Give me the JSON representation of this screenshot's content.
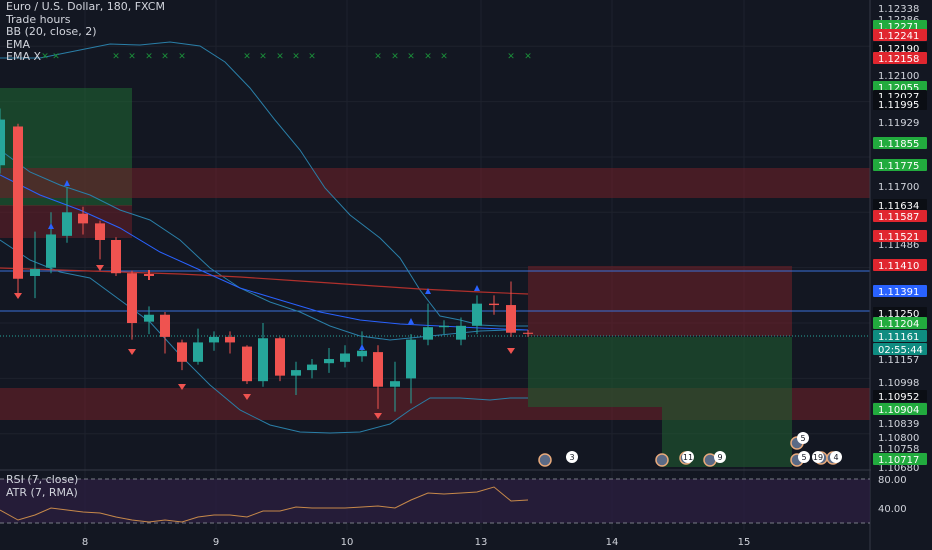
{
  "legend": {
    "symbol": "Euro / U.S. Dollar, 180, FXCM",
    "lines": [
      "Trade hours",
      "BB (20, close, 2)",
      "EMA",
      "EMA X"
    ]
  },
  "sub_legend": {
    "rsi": "RSI (7, close)",
    "atr": "ATR (7, RMA)"
  },
  "colors": {
    "background": "#131722",
    "up": "#26a69a",
    "down": "#ef5350",
    "bb": "#2a7fa8",
    "ema_red": "#b0302c",
    "ema_blue": "#2962ff",
    "marker_cross": "#1b8f3a",
    "osc_line": "#c7894a",
    "osc_bg": "#2b1e3e"
  },
  "price_axis": {
    "plain_labels": [
      "1.12338",
      "1.12286",
      "1.12100",
      "1.11929",
      "1.11700",
      "1.11486",
      "1.11157",
      "1.10998",
      "1.10839",
      "1.10800",
      "1.10758",
      "1.10680"
    ],
    "highlight_labels": [
      {
        "text": "1.12271",
        "color": "green"
      },
      {
        "text": "1.12241",
        "color": "red"
      },
      {
        "text": "1.12190",
        "color": "black"
      },
      {
        "text": "1.12158",
        "color": "red"
      },
      {
        "text": "1.12055",
        "color": "green"
      },
      {
        "text": "1.12027",
        "color": "black"
      },
      {
        "text": "1.11995",
        "color": "black"
      },
      {
        "text": "1.11855",
        "color": "green"
      },
      {
        "text": "1.11775",
        "color": "green"
      },
      {
        "text": "1.11634",
        "color": "black"
      },
      {
        "text": "1.11587",
        "color": "red"
      },
      {
        "text": "1.11521",
        "color": "red"
      },
      {
        "text": "1.11410",
        "color": "red"
      },
      {
        "text": "1.11391",
        "color": "blue"
      },
      {
        "text": "1.11250",
        "color": "black"
      },
      {
        "text": "1.11204",
        "color": "green"
      },
      {
        "text": "1.11161",
        "color": "teal"
      },
      {
        "text": "02:55:44",
        "color": "teal"
      },
      {
        "text": "1.10952",
        "color": "black"
      },
      {
        "text": "1.10904",
        "color": "green"
      },
      {
        "text": "1.10717",
        "color": "green"
      }
    ]
  },
  "osc_axis": [
    "80.00",
    "40.00"
  ],
  "time_axis": [
    "8",
    "9",
    "10",
    "13",
    "14",
    "15"
  ],
  "events": [
    {
      "count": "3"
    },
    {
      "count": "11"
    },
    {
      "count": "9"
    },
    {
      "count": "5"
    },
    {
      "count": "5"
    },
    {
      "count": "19"
    },
    {
      "count": "4"
    }
  ]
}
